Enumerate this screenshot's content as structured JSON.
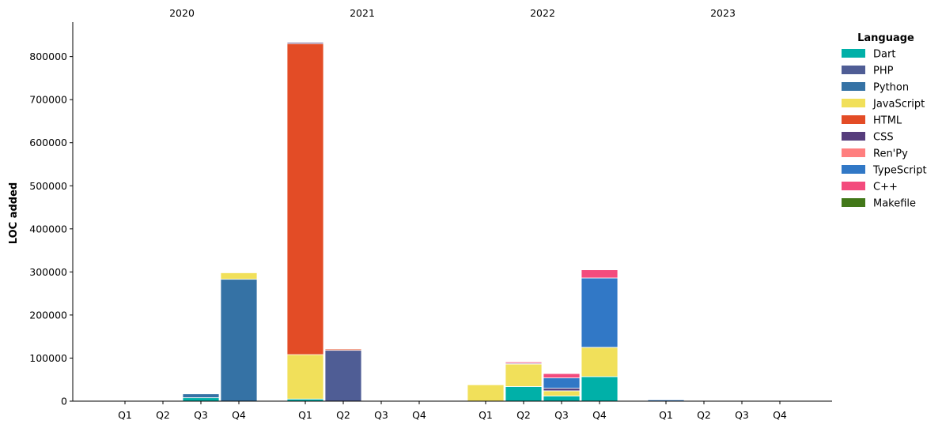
{
  "chart_data": {
    "type": "bar",
    "stacked": true,
    "ylabel": "LOC added",
    "ylim": [
      0,
      880000
    ],
    "yticks": [
      0,
      100000,
      200000,
      300000,
      400000,
      500000,
      600000,
      700000,
      800000
    ],
    "years": [
      "2020",
      "2021",
      "2022",
      "2023"
    ],
    "quarters": [
      "Q1",
      "Q2",
      "Q3",
      "Q4"
    ],
    "legend": {
      "title": "Language",
      "placement": "right"
    },
    "series": [
      {
        "name": "Dart",
        "color": "#00b0a8",
        "values": [
          0,
          0,
          8000,
          0,
          5000,
          0,
          0,
          1000,
          0,
          34000,
          12000,
          57000,
          0,
          0,
          0,
          0
        ]
      },
      {
        "name": "PHP",
        "color": "#4f5d95",
        "values": [
          0,
          0,
          0,
          0,
          0,
          118000,
          0,
          0,
          0,
          0,
          0,
          0,
          0,
          0,
          0,
          0
        ]
      },
      {
        "name": "Python",
        "color": "#3572a5",
        "values": [
          0,
          0,
          9000,
          283000,
          0,
          0,
          0,
          0,
          0,
          0,
          0,
          0,
          0,
          0,
          0,
          0
        ]
      },
      {
        "name": "JavaScript",
        "color": "#f1e05a",
        "values": [
          0,
          0,
          0,
          15000,
          103000,
          0,
          0,
          0,
          38000,
          52000,
          12000,
          68000,
          0,
          0,
          0,
          0
        ]
      },
      {
        "name": "HTML",
        "color": "#e34c26",
        "values": [
          0,
          0,
          0,
          0,
          722000,
          3000,
          0,
          0,
          0,
          0,
          0,
          0,
          0,
          0,
          0,
          0
        ]
      },
      {
        "name": "CSS",
        "color": "#563d7c",
        "values": [
          0,
          0,
          0,
          0,
          3000,
          1000,
          0,
          0,
          0,
          2000,
          6000,
          0,
          0,
          0,
          0,
          0
        ]
      },
      {
        "name": "Ren'Py",
        "color": "#ff7f7f",
        "values": [
          0,
          0,
          0,
          0,
          1000,
          1000,
          0,
          0,
          0,
          0,
          0,
          0,
          0,
          0,
          0,
          0
        ]
      },
      {
        "name": "TypeScript",
        "color": "#3178c6",
        "values": [
          0,
          0,
          0,
          0,
          0,
          0,
          0,
          0,
          0,
          0,
          24000,
          161000,
          3000,
          0,
          0,
          0
        ]
      },
      {
        "name": "C++",
        "color": "#f34b7d",
        "values": [
          0,
          0,
          0,
          0,
          0,
          0,
          0,
          0,
          0,
          3000,
          10000,
          19000,
          0,
          0,
          0,
          0
        ]
      },
      {
        "name": "Makefile",
        "color": "#427819",
        "values": [
          0,
          0,
          0,
          0,
          0,
          0,
          0,
          0,
          0,
          0,
          0,
          0,
          0,
          0,
          0,
          0
        ]
      }
    ]
  }
}
